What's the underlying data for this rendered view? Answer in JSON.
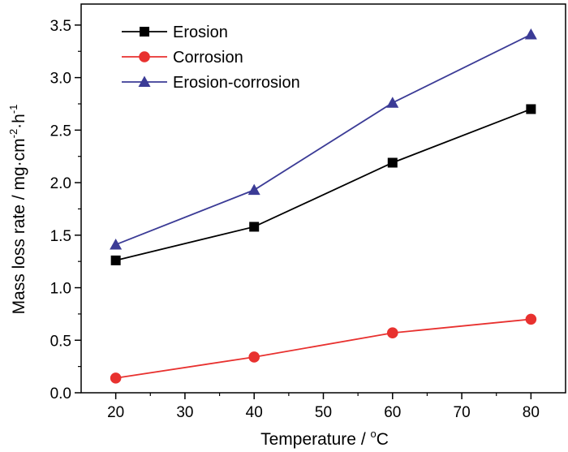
{
  "chart_data": {
    "type": "line",
    "title": "",
    "xlabel": "Temperature / °C",
    "xlabel_parts": {
      "main": "Temperature / ",
      "degree": "o",
      "unit": "C"
    },
    "ylabel": "Mass loss rate / mg·cm⁻²·h⁻¹",
    "ylabel_parts": {
      "main": "Mass loss rate / mg·cm",
      "exp1": "-2",
      "mid": "·h",
      "exp2": "-1"
    },
    "xlim": [
      15,
      85
    ],
    "ylim": [
      0,
      3.7
    ],
    "xticks": [
      20,
      30,
      40,
      50,
      60,
      70,
      80
    ],
    "yticks": [
      0.0,
      0.5,
      1.0,
      1.5,
      2.0,
      2.5,
      3.0,
      3.5
    ],
    "x": [
      20,
      40,
      60,
      80
    ],
    "legend_position": "top-left",
    "grid": false,
    "series": [
      {
        "name": "Erosion",
        "values": [
          1.26,
          1.58,
          2.19,
          2.7
        ],
        "color": "#000000",
        "marker": "square"
      },
      {
        "name": "Corrosion",
        "values": [
          0.14,
          0.34,
          0.57,
          0.7
        ],
        "color": "#e8312f",
        "marker": "circle"
      },
      {
        "name": "Erosion-corrosion",
        "values": [
          1.41,
          1.93,
          2.76,
          3.41
        ],
        "color": "#3b3b96",
        "marker": "triangle"
      }
    ]
  }
}
